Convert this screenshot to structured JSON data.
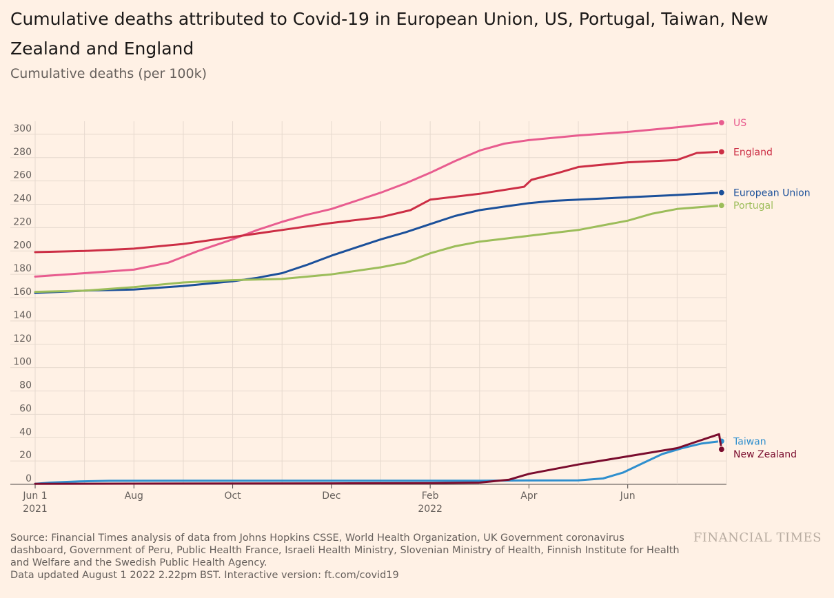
{
  "title": "Cumulative deaths attributed to Covid-19 in European Union, US, Portugal, Taiwan, New Zealand and England",
  "subtitle": "Cumulative deaths (per 100k)",
  "chart_data": {
    "type": "line",
    "title": "Cumulative deaths attributed to Covid-19 in European Union, US, Portugal, Taiwan, New Zealand and England",
    "ylabel": "Cumulative deaths (per 100k)",
    "xlabel": "",
    "ylim": [
      0,
      310
    ],
    "yticks": [
      0,
      20,
      40,
      60,
      80,
      100,
      120,
      140,
      160,
      180,
      200,
      220,
      240,
      260,
      280,
      300
    ],
    "x_range_months": [
      0,
      14
    ],
    "xticks": [
      {
        "pos": 0,
        "label": "Jun 1",
        "sub": "2021"
      },
      {
        "pos": 2,
        "label": "Aug",
        "sub": ""
      },
      {
        "pos": 4,
        "label": "Oct",
        "sub": ""
      },
      {
        "pos": 6,
        "label": "Dec",
        "sub": ""
      },
      {
        "pos": 8,
        "label": "Feb",
        "sub": "2022"
      },
      {
        "pos": 10,
        "label": "Apr",
        "sub": ""
      },
      {
        "pos": 12,
        "label": "Jun",
        "sub": ""
      }
    ],
    "series": [
      {
        "name": "US",
        "color": "#e85c8f",
        "x": [
          0,
          1,
          2,
          2.7,
          3.3,
          4,
          4.5,
          5,
          5.5,
          6,
          6.5,
          7,
          7.5,
          8,
          8.5,
          9,
          9.5,
          10,
          11,
          12,
          13,
          13.9
        ],
        "y": [
          178,
          181,
          184,
          190,
          200,
          210,
          218,
          225,
          231,
          236,
          243,
          250,
          258,
          267,
          277,
          286,
          292,
          295,
          299,
          302,
          306,
          310
        ]
      },
      {
        "name": "England",
        "color": "#cc2e45",
        "x": [
          0,
          1,
          2,
          3,
          4,
          5,
          6,
          7,
          7.6,
          8,
          9,
          9.9,
          10.05,
          10.6,
          11,
          12,
          13,
          13.4,
          13.9
        ],
        "y": [
          199,
          200,
          202,
          206,
          212,
          218,
          224,
          229,
          235,
          244,
          249,
          255,
          261,
          267,
          272,
          276,
          278,
          284,
          285
        ]
      },
      {
        "name": "European Union",
        "color": "#1b509a",
        "x": [
          0,
          1,
          2,
          3,
          4,
          4.5,
          5,
          5.5,
          6,
          6.5,
          7,
          7.5,
          8,
          8.5,
          9,
          9.5,
          10,
          10.5,
          11,
          12,
          13,
          13.9
        ],
        "y": [
          164,
          166,
          167,
          170,
          174,
          177,
          181,
          188,
          196,
          203,
          210,
          216,
          223,
          230,
          235,
          238,
          241,
          243,
          244,
          246,
          248,
          250
        ]
      },
      {
        "name": "Portugal",
        "color": "#9cbd5a",
        "x": [
          0,
          1,
          2,
          3,
          4,
          5,
          6,
          7,
          7.5,
          8,
          8.5,
          9,
          10,
          11,
          12,
          12.5,
          13,
          13.9
        ],
        "y": [
          165,
          166,
          169,
          173,
          175,
          176,
          180,
          186,
          190,
          198,
          204,
          208,
          213,
          218,
          226,
          232,
          236,
          239
        ]
      },
      {
        "name": "Taiwan",
        "color": "#2f8fce",
        "x": [
          0,
          0.3,
          0.9,
          1.5,
          3,
          6,
          9,
          10,
          11,
          11.5,
          11.9,
          12.3,
          12.7,
          13.1,
          13.5,
          13.9
        ],
        "y": [
          0.5,
          1.5,
          2.5,
          3.0,
          3.1,
          3.1,
          3.1,
          3.3,
          3.4,
          5,
          10,
          18,
          26,
          31,
          35,
          37
        ]
      },
      {
        "name": "New Zealand",
        "color": "#7a0c2e",
        "x": [
          0,
          6,
          8,
          9,
          9.6,
          10,
          11,
          12,
          13,
          13.85,
          13.9
        ],
        "y": [
          0.5,
          0.8,
          1.0,
          1.5,
          4,
          9,
          17,
          24,
          31,
          43,
          30
        ]
      }
    ],
    "end_labels": [
      {
        "series": "US",
        "label": "US",
        "label_y": 310
      },
      {
        "series": "England",
        "label": "England",
        "label_y": 285
      },
      {
        "series": "European Union",
        "label": "European Union",
        "label_y": 250
      },
      {
        "series": "Portugal",
        "label": "Portugal",
        "label_y": 239
      },
      {
        "series": "Taiwan",
        "label": "Taiwan",
        "label_y": 37
      },
      {
        "series": "New Zealand",
        "label": "New Zealand",
        "label_y": 26
      }
    ]
  },
  "footer": {
    "source": "Source: Financial Times analysis of data from Johns Hopkins CSSE, World Health Organization, UK Government coronavirus dashboard, Government of Peru, Public Health France, Israeli Health Ministry, Slovenian Ministry of Health, Finnish Institute for Health and Welfare and the Swedish Public Health Agency.",
    "updated": "Data updated August 1 2022 2.22pm BST. Interactive version: ft.com/covid19"
  },
  "brand": "FINANCIAL TIMES"
}
